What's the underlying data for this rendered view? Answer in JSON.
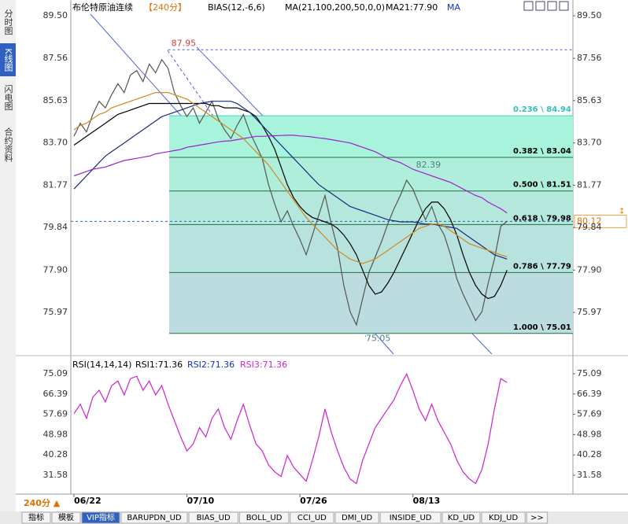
{
  "sidebar": [
    "分时图",
    "K线图",
    "闪电图",
    "合约资料"
  ],
  "header": {
    "title": "布伦特原油连续",
    "period": "【240分】",
    "bias": "BIAS(12,-6,6)",
    "ma": "MA(21,100,200,50,0,0)",
    "ma21": "MA21:77.90",
    "ma_more": "MA"
  },
  "period_selector": "240分 ▲",
  "tabs": [
    "指标",
    "模板",
    "VIP指标",
    "BARUPDN_UD",
    "BIAS_UD",
    "BOLL_UD",
    "CCI_UD",
    "DMI_UD",
    "INSIDE_UD",
    "KD_UD",
    "KDJ_UD",
    ">>"
  ],
  "chart_data": [
    {
      "type": "line",
      "xlim": [
        -0.5,
        79.5
      ],
      "xticks": [
        {
          "value": 0,
          "label": "06/22"
        },
        {
          "value": 18,
          "label": "07/10"
        },
        {
          "value": 36,
          "label": "07/26"
        },
        {
          "value": 54,
          "label": "08/13"
        }
      ],
      "ylim": [
        74.07,
        90.22
      ],
      "yticks": [
        {
          "value": 89.5,
          "label": "89.50"
        },
        87.56,
        85.63,
        {
          "value": 83.7,
          "label": "83.70"
        },
        81.77,
        79.84,
        {
          "value": 77.9,
          "label": "77.90"
        },
        75.97
      ],
      "series": [
        {
          "color": "#555555",
          "values": [
            84.0,
            84.6,
            84.2,
            85.0,
            85.6,
            85.3,
            85.9,
            86.4,
            86.0,
            86.8,
            87.0,
            86.5,
            87.3,
            86.9,
            87.5,
            87.1,
            86.0,
            85.4,
            84.9,
            85.3,
            84.6,
            85.1,
            85.6,
            84.8,
            84.3,
            83.9,
            84.5,
            85.0,
            84.2,
            83.6,
            83.0,
            81.8,
            80.9,
            80.1,
            80.6,
            79.9,
            79.3,
            78.6,
            79.5,
            80.4,
            81.3,
            80.0,
            78.9,
            77.2,
            76.0,
            75.4,
            76.6,
            77.8,
            78.5,
            79.2,
            80.0,
            80.7,
            81.3,
            82.0,
            81.6,
            80.9,
            80.2,
            80.8,
            80.0,
            79.5,
            78.6,
            77.5,
            76.8,
            76.2,
            75.6,
            76.0,
            77.3,
            78.4,
            79.9,
            80.12
          ]
        },
        {
          "color": "#000000",
          "values": [
            83.6,
            83.8,
            84.0,
            84.2,
            84.4,
            84.6,
            84.8,
            85.0,
            85.1,
            85.2,
            85.3,
            85.4,
            85.5,
            85.5,
            85.5,
            85.5,
            85.5,
            85.5,
            85.5,
            85.5,
            85.5,
            85.5,
            85.4,
            85.4,
            85.3,
            85.3,
            85.3,
            85.2,
            85.1,
            84.9,
            84.5,
            84.0,
            83.4,
            82.6,
            81.8,
            81.2,
            80.8,
            80.5,
            80.3,
            80.2,
            80.1,
            80.0,
            79.8,
            79.5,
            79.1,
            78.6,
            77.9,
            77.2,
            76.8,
            76.9,
            77.3,
            77.8,
            78.4,
            79.0,
            79.6,
            80.2,
            80.7,
            81.0,
            81.0,
            80.7,
            80.2,
            79.5,
            78.6,
            77.8,
            77.2,
            76.8,
            76.6,
            76.7,
            77.2,
            77.9
          ]
        },
        {
          "color": "#1a2a80",
          "values": [
            81.6,
            81.9,
            82.2,
            82.5,
            82.8,
            83.1,
            83.3,
            83.5,
            83.7,
            83.9,
            84.1,
            84.3,
            84.5,
            84.7,
            84.9,
            85.0,
            85.1,
            85.2,
            85.3,
            85.4,
            85.5,
            85.55,
            85.6,
            85.6,
            85.6,
            85.6,
            85.5,
            85.3,
            85.1,
            84.8,
            84.5,
            84.2,
            83.9,
            83.6,
            83.3,
            83.0,
            82.7,
            82.4,
            82.1,
            81.8,
            81.6,
            81.4,
            81.2,
            81.0,
            80.8,
            80.7,
            80.6,
            80.5,
            80.4,
            80.3,
            80.2,
            80.15,
            80.1,
            80.1,
            80.1,
            80.05,
            80.0,
            80.0,
            79.95,
            79.9,
            79.85,
            79.8,
            79.6,
            79.4,
            79.2,
            79.0,
            78.8,
            78.6,
            78.5,
            78.4
          ]
        },
        {
          "color": "#a020d0",
          "values": [
            82.2,
            82.3,
            82.4,
            82.5,
            82.55,
            82.6,
            82.7,
            82.8,
            82.9,
            82.95,
            83.0,
            83.05,
            83.1,
            83.2,
            83.25,
            83.3,
            83.35,
            83.4,
            83.5,
            83.55,
            83.6,
            83.65,
            83.7,
            83.75,
            83.78,
            83.8,
            83.85,
            83.9,
            83.95,
            84.0,
            84.0,
            84.02,
            84.03,
            84.04,
            84.05,
            84.05,
            84.02,
            84.0,
            83.97,
            83.93,
            83.9,
            83.85,
            83.8,
            83.75,
            83.7,
            83.6,
            83.5,
            83.4,
            83.3,
            83.15,
            83.0,
            82.9,
            82.8,
            82.65,
            82.5,
            82.4,
            82.3,
            82.2,
            82.1,
            82.0,
            81.9,
            81.75,
            81.6,
            81.45,
            81.3,
            81.2,
            81.0,
            80.85,
            80.7,
            80.5
          ]
        },
        {
          "color": "#d08a20",
          "values": [
            84.3,
            84.5,
            84.6,
            84.8,
            85.0,
            85.1,
            85.3,
            85.4,
            85.5,
            85.6,
            85.7,
            85.8,
            85.9,
            86.0,
            86.0,
            86.0,
            85.9,
            85.8,
            85.7,
            85.5,
            85.3,
            85.1,
            84.9,
            84.7,
            84.5,
            84.3,
            84.1,
            83.9,
            83.6,
            83.3,
            83.0,
            82.7,
            82.3,
            81.9,
            81.5,
            81.1,
            80.7,
            80.3,
            80.0,
            79.7,
            79.4,
            79.1,
            78.8,
            78.6,
            78.4,
            78.3,
            78.2,
            78.3,
            78.4,
            78.6,
            78.8,
            79.0,
            79.2,
            79.4,
            79.6,
            79.8,
            79.9,
            80.0,
            80.0,
            79.9,
            79.7,
            79.5,
            79.3,
            79.1,
            79.0,
            78.9,
            78.8,
            78.7,
            78.6,
            78.5
          ]
        }
      ],
      "fib_levels": [
        {
          "label": "0.236 \\ 84.94",
          "value": 84.94
        },
        {
          "label": "0.382 \\ 83.04",
          "value": 83.04
        },
        {
          "label": "0.500 \\ 81.51",
          "value": 81.51
        },
        {
          "label": "0.618 \\ 79.98",
          "value": 79.98
        },
        {
          "label": "0.786 \\ 77.79",
          "value": 77.79
        },
        {
          "label": "1.000 \\ 75.01",
          "value": 75.01
        }
      ],
      "annotations": [
        {
          "value": 87.95,
          "x": 15
        },
        {
          "value": 82.39,
          "x": 54
        },
        {
          "value": 75.05,
          "x": 46
        }
      ],
      "current_price": 80.12
    },
    {
      "type": "line",
      "title": "RSI(14,14,14)",
      "legend": [
        "RSI1:71.36",
        "RSI2:71.36",
        "RSI3:71.36"
      ],
      "xlim": [
        -0.5,
        79.5
      ],
      "ylim": [
        24.5,
        81.84
      ],
      "yticks": [
        75.09,
        66.39,
        57.69,
        48.98,
        40.28,
        31.58
      ],
      "series": [
        {
          "color": "#d020d0",
          "values": [
            58,
            62,
            56,
            65,
            68,
            63,
            70,
            72,
            66,
            73,
            74,
            68,
            72,
            66,
            70,
            62,
            55,
            48,
            42,
            45,
            52,
            48,
            56,
            60,
            52,
            47,
            55,
            62,
            53,
            45,
            42,
            36,
            33,
            31,
            40,
            35,
            32,
            29,
            38,
            48,
            60,
            50,
            42,
            35,
            30,
            28,
            38,
            45,
            52,
            56,
            60,
            64,
            70,
            75,
            68,
            60,
            55,
            62,
            55,
            50,
            45,
            38,
            33,
            30,
            28,
            34,
            45,
            60,
            73,
            71.36
          ]
        }
      ]
    }
  ]
}
